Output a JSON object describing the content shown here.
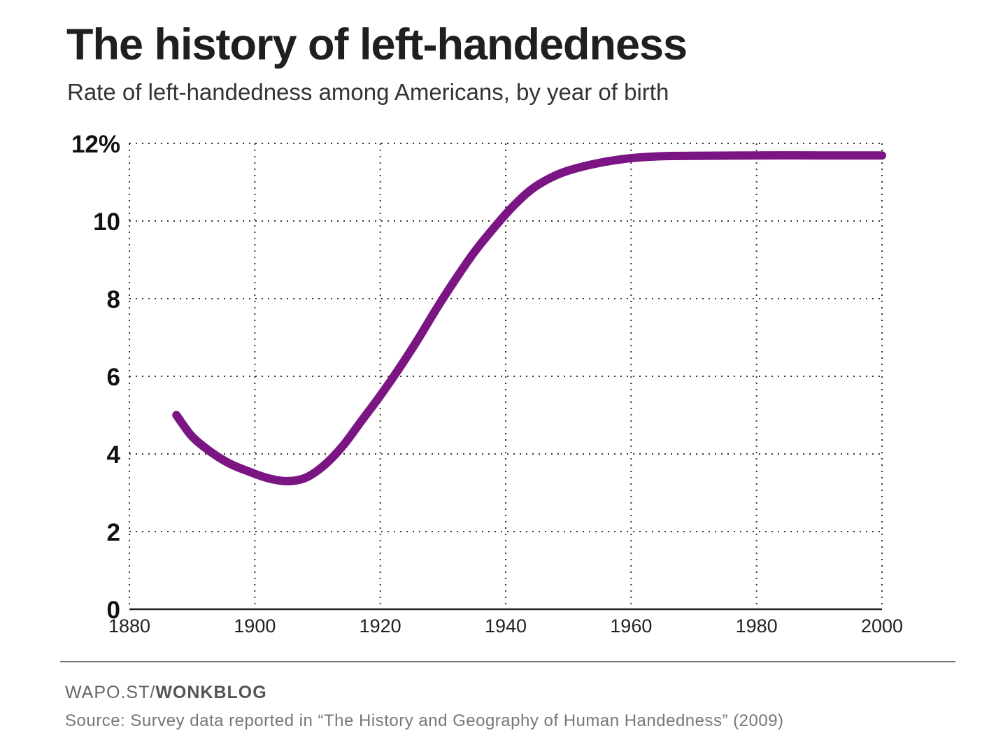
{
  "header": {
    "title": "The history of left-handedness",
    "subtitle": "Rate of left-handedness among Americans, by year of birth"
  },
  "chart_data": {
    "type": "line",
    "xlim": [
      1880,
      2000
    ],
    "ylim": [
      0,
      12
    ],
    "x_ticks": [
      "1880",
      "1900",
      "1920",
      "1940",
      "1960",
      "1980",
      "2000"
    ],
    "x_tick_values": [
      1880,
      1900,
      1920,
      1940,
      1960,
      1980,
      2000
    ],
    "y_ticks": [
      "0",
      "2",
      "4",
      "6",
      "8",
      "10",
      "12%"
    ],
    "y_tick_values": [
      0,
      2,
      4,
      6,
      8,
      10,
      12
    ],
    "grid": true,
    "line_color": "#7b1583",
    "series": [
      {
        "x": [
          1887.5,
          1890,
          1893,
          1896,
          1899,
          1902,
          1905,
          1908,
          1911,
          1914,
          1917,
          1920,
          1923,
          1926,
          1929,
          1932,
          1935,
          1938,
          1941,
          1944,
          1947,
          1950,
          1955,
          1960,
          1965,
          1970,
          1980,
          1990,
          2000
        ],
        "y": [
          5.0,
          4.45,
          4.05,
          3.75,
          3.55,
          3.38,
          3.3,
          3.38,
          3.7,
          4.2,
          4.85,
          5.5,
          6.2,
          6.95,
          7.75,
          8.5,
          9.2,
          9.8,
          10.35,
          10.8,
          11.1,
          11.3,
          11.5,
          11.62,
          11.67,
          11.68,
          11.69,
          11.69,
          11.69
        ]
      }
    ]
  },
  "footer": {
    "credit_prefix": "WAPO.ST/",
    "credit_bold": "WONKBLOG",
    "source": "Source: Survey data reported in “The History and Geography of Human Handedness” (2009)"
  }
}
